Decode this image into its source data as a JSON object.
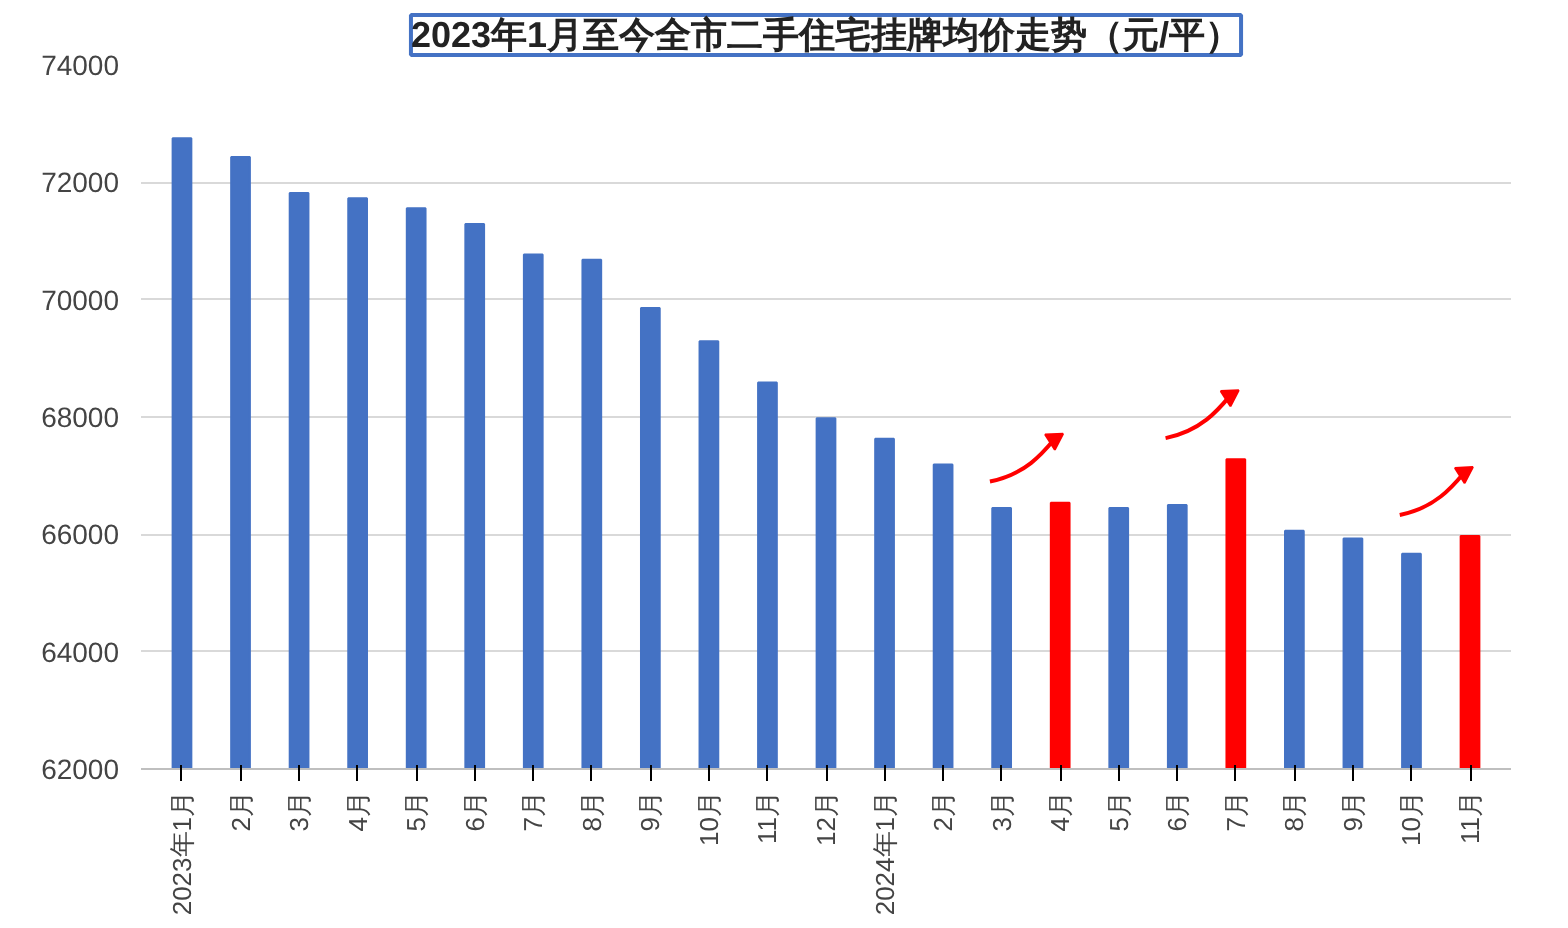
{
  "chart_data": {
    "type": "bar",
    "title": "2023年1月至今全市二手住宅挂牌均价走势（元/平）",
    "categories": [
      "2023年1月",
      "2月",
      "3月",
      "4月",
      "5月",
      "6月",
      "7月",
      "8月",
      "9月",
      "10月",
      "11月",
      "12月",
      "2024年1月",
      "2月",
      "3月",
      "4月",
      "5月",
      "6月",
      "7月",
      "8月",
      "9月",
      "10月",
      "11月"
    ],
    "values": [
      72750,
      72430,
      71820,
      71730,
      71560,
      71290,
      70770,
      70680,
      69860,
      69290,
      68590,
      67980,
      67630,
      67190,
      66450,
      66540,
      66450,
      66500,
      67280,
      66060,
      65930,
      65670,
      65970
    ],
    "colors": [
      "#4472c4",
      "#4472c4",
      "#4472c4",
      "#4472c4",
      "#4472c4",
      "#4472c4",
      "#4472c4",
      "#4472c4",
      "#4472c4",
      "#4472c4",
      "#4472c4",
      "#4472c4",
      "#4472c4",
      "#4472c4",
      "#4472c4",
      "#ff0000",
      "#4472c4",
      "#4472c4",
      "#ff0000",
      "#4472c4",
      "#4472c4",
      "#4472c4",
      "#ff0000"
    ],
    "ylim": [
      62000,
      74000
    ],
    "yticks": [
      62000,
      64000,
      66000,
      68000,
      70000,
      72000,
      74000
    ],
    "grid": "y"
  }
}
